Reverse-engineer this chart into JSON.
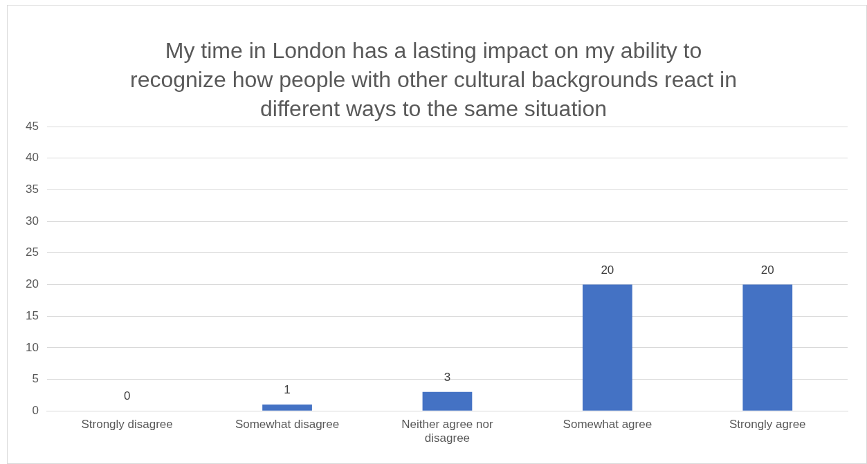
{
  "chart_data": {
    "type": "bar",
    "title": "My time in London has a lasting impact on my ability to recognize how people with other cultural backgrounds react in different ways to the same situation",
    "categories": [
      "Strongly disagree",
      "Somewhat disagree",
      "Neither agree nor disagree",
      "Somewhat agree",
      "Strongly agree"
    ],
    "values": [
      0,
      1,
      3,
      20,
      20
    ],
    "color": "#4472c4",
    "ylim": [
      0,
      45
    ],
    "yticks": [
      0,
      5,
      10,
      15,
      20,
      25,
      30,
      35,
      40,
      45
    ],
    "grid": "y",
    "data_labels": true,
    "legend": false
  }
}
